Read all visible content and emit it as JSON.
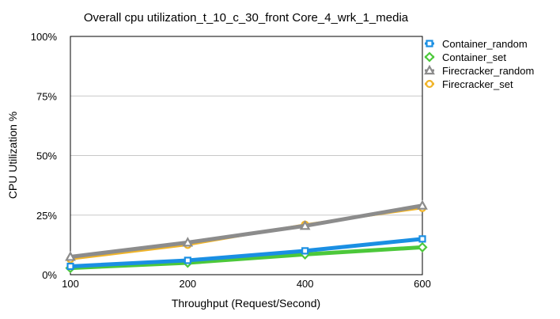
{
  "chart_data": {
    "type": "line",
    "title": "Overall cpu utilization_t_10_c_30_front Core_4_wrk_1_media",
    "xlabel": "Throughput (Request/Second)",
    "ylabel": "CPU Utilization %",
    "categories": [
      "100",
      "200",
      "400",
      "600"
    ],
    "ylim": [
      0,
      100
    ],
    "yticks": [
      "0%",
      "25%",
      "50%",
      "75%",
      "100%"
    ],
    "ytick_values": [
      0,
      25,
      50,
      75,
      100
    ],
    "grid": true,
    "legend_position": "right",
    "series": [
      {
        "name": "Container_random",
        "values": [
          3.5,
          6.0,
          10.0,
          15.0
        ],
        "color": "#1a8fe3",
        "marker": "square"
      },
      {
        "name": "Container_set",
        "values": [
          2.8,
          5.0,
          8.5,
          11.5
        ],
        "color": "#4cc83a",
        "marker": "diamond"
      },
      {
        "name": "Firecracker_random",
        "values": [
          7.5,
          13.5,
          20.5,
          29.0
        ],
        "color": "#8c8c8c",
        "marker": "triangle"
      },
      {
        "name": "Firecracker_set",
        "values": [
          6.5,
          12.5,
          21.0,
          28.0
        ],
        "color": "#f0b429",
        "marker": "circle"
      }
    ]
  }
}
